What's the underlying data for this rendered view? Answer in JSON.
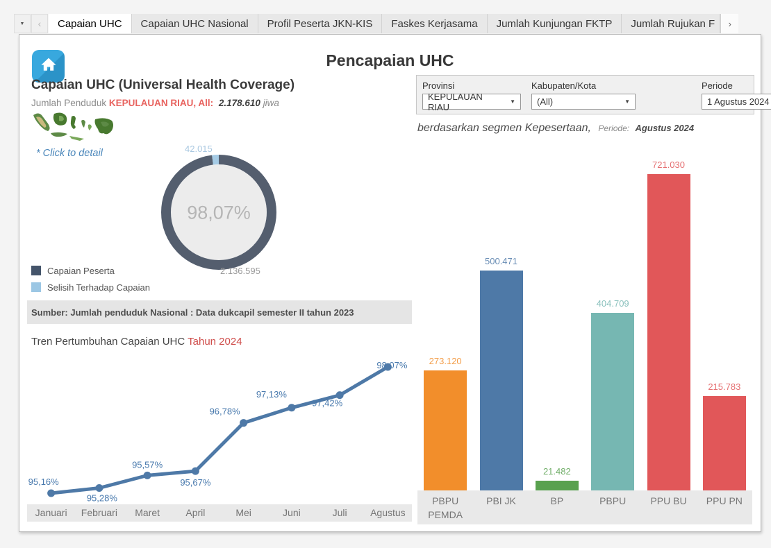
{
  "toolbar": {
    "icons": {
      "dropdown": "▼",
      "back": "‹",
      "scroll_right": "›"
    },
    "tabs": [
      {
        "label": "Capaian UHC",
        "active": true
      },
      {
        "label": "Capaian UHC Nasional",
        "active": false
      },
      {
        "label": "Profil Peserta JKN-KIS",
        "active": false
      },
      {
        "label": "Faskes Kerjasama",
        "active": false
      },
      {
        "label": "Jumlah Kunjungan FKTP",
        "active": false
      },
      {
        "label": "Jumlah Rujukan F",
        "active": false,
        "clipped": true
      }
    ]
  },
  "header": {
    "title": "Pencapaian UHC"
  },
  "left": {
    "heading": "Capaian UHC (Universal Health Coverage)",
    "subtitle_prefix": "Jumlah Penduduk",
    "subtitle_region": "KEPULAUAN RIAU, All:",
    "subtitle_value": "2.178.610",
    "subtitle_unit": "jiwa",
    "click_hint": "* Click to detail",
    "legend": [
      {
        "label": "Capaian Peserta",
        "color": "#44546a"
      },
      {
        "label": "Selisih Terhadap Capaian",
        "color": "#9cc7e4"
      }
    ],
    "source_note": "Sumber: Jumlah penduduk Nasional : Data dukcapil semester II tahun 2023",
    "trend_title": "Tren Pertumbuhan Capaian UHC",
    "trend_title_accent": "Tahun 2024"
  },
  "filters": {
    "provinsi": {
      "label": "Provinsi",
      "value": "KEPULAUAN RIAU"
    },
    "kabupaten": {
      "label": "Kabupaten/Kota",
      "value": "(All)"
    },
    "periode": {
      "label": "Periode",
      "value": "1 Agustus 2024"
    }
  },
  "segment_caption": {
    "text": "berdasarkan segmen Kepesertaan,",
    "periode_label": "Periode:",
    "periode_value": "Agustus 2024"
  },
  "chart_data": [
    {
      "type": "pie",
      "title": "Capaian UHC donut",
      "center_label": "98,07%",
      "slices": [
        {
          "label": "Capaian Peserta",
          "value": 2136595,
          "display": "2.136.595",
          "color": "#545e6e"
        },
        {
          "label": "Selisih Terhadap Capaian",
          "value": 42015,
          "display": "42.015",
          "color": "#a5cbe5"
        }
      ]
    },
    {
      "type": "line",
      "title": "Tren Pertumbuhan Capaian UHC Tahun 2024",
      "categories": [
        "Januari",
        "Februari",
        "Maret",
        "April",
        "Mei",
        "Juni",
        "Juli",
        "Agustus"
      ],
      "values": [
        95.16,
        95.28,
        95.57,
        95.67,
        96.78,
        97.13,
        97.42,
        98.07
      ],
      "labels": [
        "95,16%",
        "95,28%",
        "95,57%",
        "95,67%",
        "96,78%",
        "97,13%",
        "97,42%",
        "98,07%"
      ],
      "color": "#4e79a7",
      "label_color": "#4879ad",
      "ylim": [
        95.0,
        98.3
      ]
    },
    {
      "type": "bar",
      "title": "Peserta berdasarkan segmen Kepesertaan Agustus 2024",
      "categories": [
        "PBPU PEMDA",
        "PBI JK",
        "BP",
        "PBPU",
        "PPU BU",
        "PPU PN"
      ],
      "category_lines": [
        [
          "PBPU",
          "PEMDA"
        ],
        [
          "PBI JK"
        ],
        [
          "BP"
        ],
        [
          "PBPU"
        ],
        [
          "PPU BU"
        ],
        [
          "PPU PN"
        ]
      ],
      "values": [
        273120,
        500471,
        21482,
        404709,
        721030,
        215783
      ],
      "labels": [
        "273.120",
        "500.471",
        "21.482",
        "404.709",
        "721.030",
        "215.783"
      ],
      "colors": [
        "#f28e2b",
        "#4e79a7",
        "#59a14f",
        "#76b7b2",
        "#e15759",
        "#e15759"
      ],
      "ylim": [
        0,
        760000
      ]
    }
  ]
}
